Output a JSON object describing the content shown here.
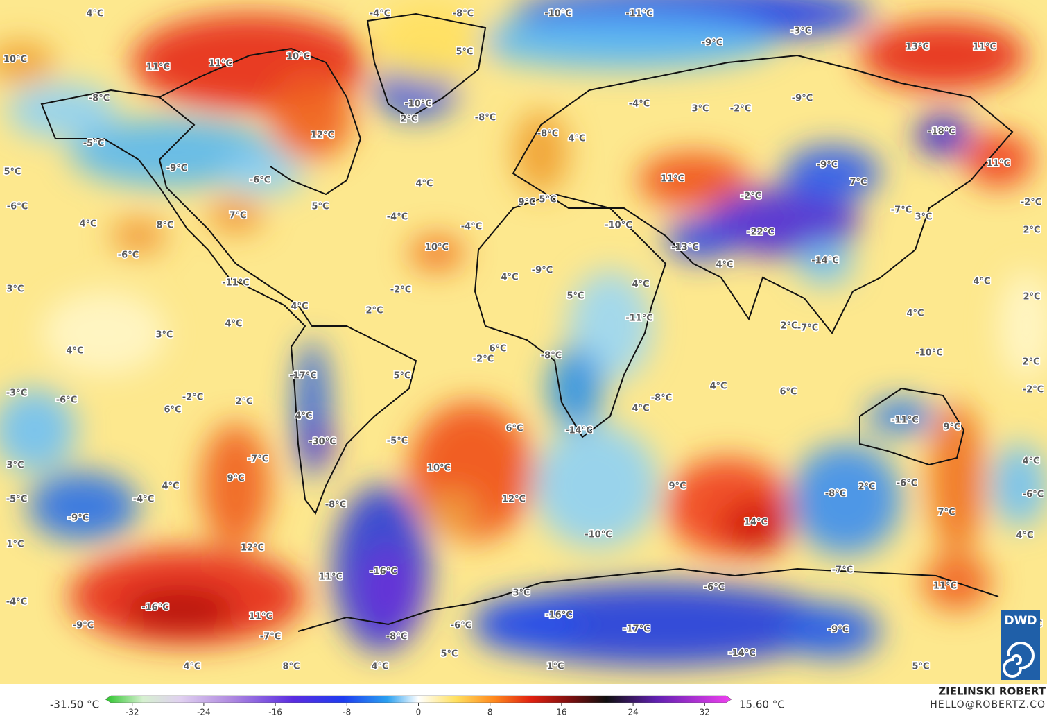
{
  "map": {
    "labels": [
      "4°C",
      "-4°C",
      "-8°C",
      "-10°C",
      "-11°C",
      "-3°C",
      "-9°C",
      "5°C",
      "13°C",
      "11°C",
      "10°C",
      "10°C",
      "11°C",
      "11°C",
      "-8°C",
      "-10°C",
      "-4°C",
      "3°C",
      "-2°C",
      "-9°C",
      "2°C",
      "-8°C",
      "12°C",
      "-8°C",
      "4°C",
      "-18°C",
      "-5°C",
      "5°C",
      "-9°C",
      "-6°C",
      "11°C",
      "-9°C",
      "7°C",
      "11°C",
      "4°C",
      "-6°C",
      "5°C",
      "-2°C",
      "-2°C",
      "7°C",
      "-4°C",
      "9°C",
      "5°C",
      "-7°C",
      "3°C",
      "4°C",
      "8°C",
      "-4°C",
      "-10°C",
      "-22°C",
      "2°C",
      "-6°C",
      "10°C",
      "-13°C",
      "-14°C",
      "-11°C",
      "-9°C",
      "4°C",
      "4°C",
      "4°C",
      "3°C",
      "-2°C",
      "4°C",
      "2°C",
      "4°C",
      "2°C",
      "5°C",
      "-11°C",
      "4°C",
      "4°C",
      "3°C",
      "2°C",
      "-7°C",
      "4°C",
      "6°C",
      "-2°C",
      "-8°C",
      "-10°C",
      "2°C",
      "-17°C",
      "5°C",
      "4°C",
      "6°C",
      "-2°C",
      "-3°C",
      "-6°C",
      "-2°C",
      "2°C",
      "-8°C",
      "6°C",
      "4°C",
      "4°C",
      "-11°C",
      "9°C",
      "-30°C",
      "-5°C",
      "6°C",
      "-14°C",
      "-7°C",
      "3°C",
      "4°C",
      "10°C",
      "9°C",
      "4°C",
      "9°C",
      "-6°C",
      "2°C",
      "-4°C",
      "-5°C",
      "12°C",
      "-8°C",
      "-6°C",
      "-8°C",
      "-9°C",
      "7°C",
      "14°C",
      "-10°C",
      "4°C",
      "1°C",
      "12°C",
      "-16°C",
      "-7°C",
      "11°C",
      "-6°C",
      "11°C",
      "3°C",
      "-4°C",
      "-16°C",
      "-16°C",
      "11°C",
      "-9°C",
      "-6°C",
      "-17°C",
      "-9°C",
      "-8°C",
      "-7°C",
      "-8°C",
      "-14°C",
      "5°C",
      "4°C",
      "8°C",
      "4°C",
      "1°C",
      "5°C"
    ]
  },
  "colorbar": {
    "min_label": "-31.50 °C",
    "max_label": "15.60 °C",
    "lim": [
      -35,
      35
    ],
    "ticks": [
      -32,
      -24,
      -16,
      -8,
      0,
      8,
      16,
      24,
      32
    ]
  },
  "credits": {
    "author": "ZIELINSKI ROBERT",
    "contact": "HELLO@ROBERTZ.CO",
    "logo": "DWD"
  }
}
